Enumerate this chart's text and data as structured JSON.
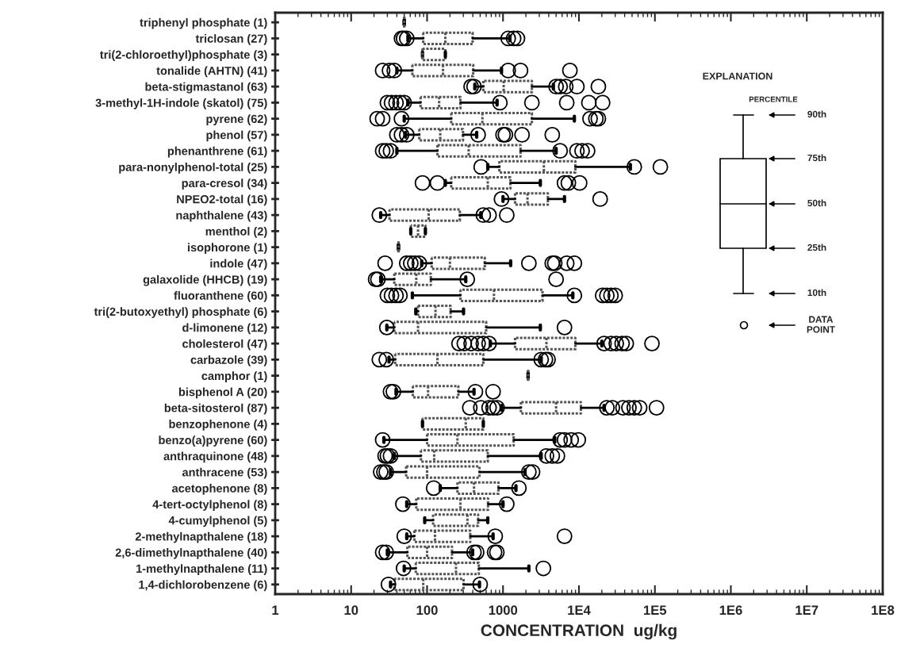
{
  "chart_data": {
    "type": "box",
    "categories": [
      "triphenyl phosphate (1)",
      "triclosan (27)",
      "tri(2-chloroethyl)phosphate (3)",
      "tonalide (AHTN) (41)",
      "beta-stigmastanol (63)",
      "3-methyl-1H-indole (skatol) (75)",
      "pyrene (62)",
      "phenol (57)",
      "phenanthrene (61)",
      "para-nonylphenol-total (25)",
      "para-cresol (34)",
      "NPEO2-total (16)",
      "naphthalene (43)",
      "menthol (2)",
      "isophorone (1)",
      "indole (47)",
      "galaxolide (HHCB) (19)",
      "fluoranthene (60)",
      "tri(2-butoxyethyl) phosphate (6)",
      "d-limonene (12)",
      "cholesterol (47)",
      "carbazole (39)",
      "camphor (1)",
      "bisphenol A (20)",
      "beta-sitosterol (87)",
      "benzophenone (4)",
      "benzo(a)pyrene (60)",
      "anthraquinone (48)",
      "anthracene (53)",
      "acetophenone (8)",
      "4-tert-octylphenol (8)",
      "4-cumylphenol (5)",
      "2-methylnapthalene (18)",
      "2,6-dimethylnapthalene (40)",
      "1-methylnapthalene (11)",
      "1,4-dichlorobenzene (6)"
    ],
    "boxes": [
      {
        "low": 50,
        "q1": 50,
        "median": 50,
        "q3": 50,
        "high": 50
      },
      {
        "low": 56,
        "q1": 89,
        "median": 174,
        "q3": 398,
        "high": 1230,
        "outliers": [
          46,
          49,
          54,
          1170,
          1380,
          1550
        ]
      },
      {
        "low": 87,
        "q1": 87,
        "median": 87,
        "q3": 174,
        "high": 174
      },
      {
        "low": 40,
        "q1": 64,
        "median": 162,
        "q3": 405,
        "high": 955,
        "outliers": [
          26,
          32,
          37,
          1170,
          1700,
          7600
        ]
      },
      {
        "low": 425,
        "q1": 550,
        "median": 1020,
        "q3": 2400,
        "high": 4600,
        "outliers": [
          380,
          415,
          5000,
          5650,
          6700,
          9400,
          18000
        ]
      },
      {
        "low": 56,
        "q1": 82,
        "median": 144,
        "q3": 275,
        "high": 835,
        "outliers": [
          30,
          34,
          39,
          44,
          50,
          910,
          2400,
          6900,
          13500,
          20500
        ]
      },
      {
        "low": 50,
        "q1": 208,
        "median": 535,
        "q3": 2400,
        "high": 8700,
        "outliers": [
          22,
          26,
          46,
          14000,
          16700,
          18000
        ]
      },
      {
        "low": 52,
        "q1": 79,
        "median": 149,
        "q3": 297,
        "high": 450,
        "outliers": [
          40,
          46,
          54,
          470,
          1000,
          1075,
          1780,
          4450
        ]
      },
      {
        "low": 40,
        "q1": 137,
        "median": 353,
        "q3": 1700,
        "high": 5000,
        "outliers": [
          26,
          29,
          33,
          5650,
          9400,
          11000,
          13000
        ]
      },
      {
        "low": 630,
        "q1": 895,
        "median": 3450,
        "q3": 8960,
        "high": 47500,
        "outliers": [
          515,
          53500,
          118000
        ]
      },
      {
        "low": 174,
        "q1": 208,
        "median": 630,
        "q3": 1250,
        "high": 3100,
        "outliers": [
          87,
          137,
          6450,
          7250,
          10200
        ]
      },
      {
        "low": 1000,
        "q1": 1440,
        "median": 2100,
        "q3": 3900,
        "high": 6450,
        "outliers": [
          955,
          19000
        ]
      },
      {
        "low": 24.5,
        "q1": 32,
        "median": 105,
        "q3": 270,
        "high": 510,
        "outliers": [
          23.5,
          550,
          655,
          1120
        ]
      },
      {
        "low": 61,
        "q1": 61,
        "median": 76,
        "q3": 95,
        "high": 95
      },
      {
        "low": 42,
        "q1": 42,
        "median": 42,
        "q3": 42,
        "high": 42
      },
      {
        "low": 85,
        "q1": 115,
        "median": 200,
        "q3": 575,
        "high": 1260,
        "outliers": [
          28,
          54,
          61,
          69,
          79,
          2190,
          4450,
          4800,
          6900,
          8700
        ]
      },
      {
        "low": 24.5,
        "q1": 37,
        "median": 72,
        "q3": 112,
        "high": 323,
        "outliers": [
          21,
          22.5,
          338,
          5000
        ]
      },
      {
        "low": 64,
        "q1": 275,
        "median": 760,
        "q3": 3310,
        "high": 8300,
        "outliers": [
          30,
          34,
          39,
          44,
          8700,
          20500,
          23300,
          26400,
          30000
        ]
      },
      {
        "low": 71,
        "q1": 76,
        "median": 129,
        "q3": 204,
        "high": 302
      },
      {
        "low": 29.5,
        "q1": 37,
        "median": 76,
        "q3": 600,
        "high": 3100,
        "outliers": [
          29.5,
          6450
        ]
      },
      {
        "low": 680,
        "q1": 1440,
        "median": 3730,
        "q3": 8960,
        "high": 20000,
        "outliers": [
          263,
          309,
          380,
          470,
          550,
          655,
          21400,
          26500,
          31000,
          37000,
          42000,
          91500
        ]
      },
      {
        "low": 31.5,
        "q1": 38,
        "median": 137,
        "q3": 550,
        "high": 3180,
        "outliers": [
          23.5,
          29,
          3180,
          3620,
          3920
        ]
      },
      {
        "low": 2140,
        "q1": 2140,
        "median": 2140,
        "q3": 2140,
        "high": 2140
      },
      {
        "low": 39,
        "q1": 65,
        "median": 103,
        "q3": 258,
        "high": 415,
        "outliers": [
          33,
          36,
          433,
          740
        ]
      },
      {
        "low": 955,
        "q1": 1720,
        "median": 5000,
        "q3": 10600,
        "high": 21400,
        "outliers": [
          365,
          510,
          655,
          740,
          835,
          23300,
          27500,
          38000,
          45500,
          53500,
          63000,
          105000
        ]
      },
      {
        "low": 87,
        "q1": 87,
        "median": 323,
        "q3": 550,
        "high": 550
      },
      {
        "low": 27,
        "q1": 100,
        "median": 251,
        "q3": 1380,
        "high": 4800,
        "outliers": [
          26,
          5650,
          6450,
          7900,
          9800
        ]
      },
      {
        "low": 37,
        "q1": 83,
        "median": 124,
        "q3": 630,
        "high": 3180,
        "outliers": [
          28,
          30,
          33,
          3730,
          4450,
          5200
        ]
      },
      {
        "low": 33,
        "q1": 53,
        "median": 100,
        "q3": 490,
        "high": 1950,
        "outliers": [
          24.5,
          27,
          29,
          2190,
          2450
        ]
      },
      {
        "low": 149,
        "q1": 251,
        "median": 415,
        "q3": 870,
        "high": 1480,
        "outliers": [
          122,
          1620
        ]
      },
      {
        "low": 54,
        "q1": 72,
        "median": 275,
        "q3": 635,
        "high": 1000,
        "outliers": [
          48,
          1120
        ]
      },
      {
        "low": 93,
        "q1": 120,
        "median": 340,
        "q3": 470,
        "high": 630
      },
      {
        "low": 54,
        "q1": 68,
        "median": 127,
        "q3": 370,
        "high": 740,
        "outliers": [
          50,
          790,
          6450
        ]
      },
      {
        "low": 30,
        "q1": 55,
        "median": 100,
        "q3": 213,
        "high": 398,
        "outliers": [
          26,
          29,
          415,
          450,
          775,
          830
        ]
      },
      {
        "low": 50,
        "q1": 71,
        "median": 240,
        "q3": 480,
        "high": 2190,
        "outliers": [
          49,
          3400
        ]
      },
      {
        "low": 33,
        "q1": 37,
        "median": 89,
        "q3": 302,
        "high": 490,
        "outliers": [
          31,
          500
        ]
      }
    ],
    "orientation": "horizontal",
    "log": "x",
    "xlim": [
      1,
      100000000
    ],
    "xticks": [
      1,
      10,
      100,
      1000,
      {
        "value": 10000,
        "label": "1E4"
      },
      {
        "value": 100000,
        "label": "1E5"
      },
      {
        "value": 1000000,
        "label": "1E6"
      },
      {
        "value": 10000000,
        "label": "1E7"
      },
      {
        "value": 100000000,
        "label": "1E8"
      }
    ],
    "xlabel": "CONCENTRATION  ug/kg",
    "marker": "circle",
    "grid": false,
    "legend": false,
    "annotations": [
      "EXPLANATION",
      "PERCENTILE",
      "90th",
      "75th",
      "50th",
      "25th",
      "10th",
      "DATA\nPOINT"
    ]
  }
}
